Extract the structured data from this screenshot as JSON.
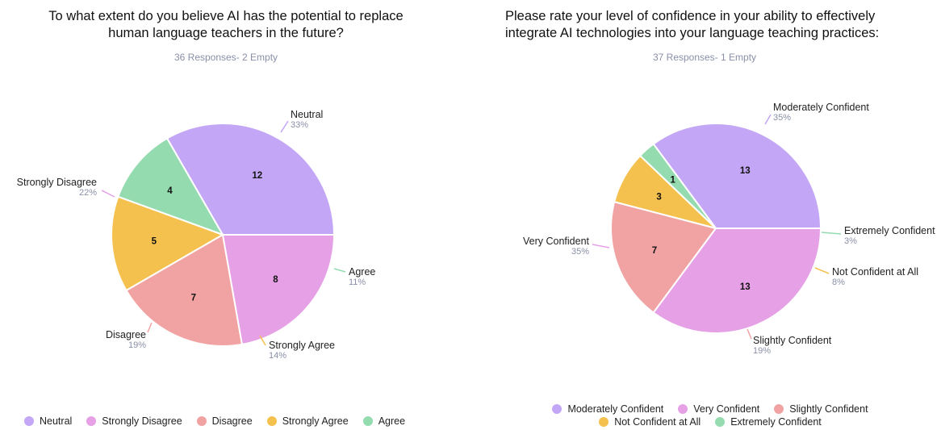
{
  "chart_data": [
    {
      "type": "pie",
      "title_lines": [
        "To what extent do you believe AI has the potential to replace",
        "human language teachers in the future?"
      ],
      "subtitle": "36 Responses- 2 Empty",
      "slices": [
        {
          "label": "Neutral",
          "value": 12,
          "percent": "33%",
          "color": "#c3a6f5"
        },
        {
          "label": "Agree",
          "value": 4,
          "percent": "11%",
          "color": "#94dcb0"
        },
        {
          "label": "Strongly Agree",
          "value": 5,
          "percent": "14%",
          "color": "#f5c14e"
        },
        {
          "label": "Disagree",
          "value": 7,
          "percent": "19%",
          "color": "#f1a3a3"
        },
        {
          "label": "Strongly Disagree",
          "value": 8,
          "percent": "22%",
          "color": "#e6a0e6"
        }
      ],
      "legend": [
        "Neutral",
        "Strongly Disagree",
        "Disagree",
        "Strongly Agree",
        "Agree"
      ],
      "legend_position": "bottom"
    },
    {
      "type": "pie",
      "title_lines": [
        "Please rate your level of confidence in your ability to effectively",
        "integrate AI technologies into your language teaching practices:"
      ],
      "subtitle": "37 Responses- 1 Empty",
      "slices": [
        {
          "label": "Moderately Confident",
          "value": 13,
          "percent": "35%",
          "color": "#c3a6f5"
        },
        {
          "label": "Extremely Confident",
          "value": 1,
          "percent": "3%",
          "color": "#94dcb0"
        },
        {
          "label": "Not Confident  at All",
          "value": 3,
          "percent": "8%",
          "color": "#f5c14e"
        },
        {
          "label": "Slightly Confident",
          "value": 7,
          "percent": "19%",
          "color": "#f1a3a3"
        },
        {
          "label": "Very Confident",
          "value": 13,
          "percent": "35%",
          "color": "#e6a0e6"
        }
      ],
      "legend": [
        "Moderately Confident",
        "Very Confident",
        "Slightly Confident",
        "Not Confident  at All",
        "Extremely Confident"
      ],
      "legend_position": "bottom"
    }
  ]
}
